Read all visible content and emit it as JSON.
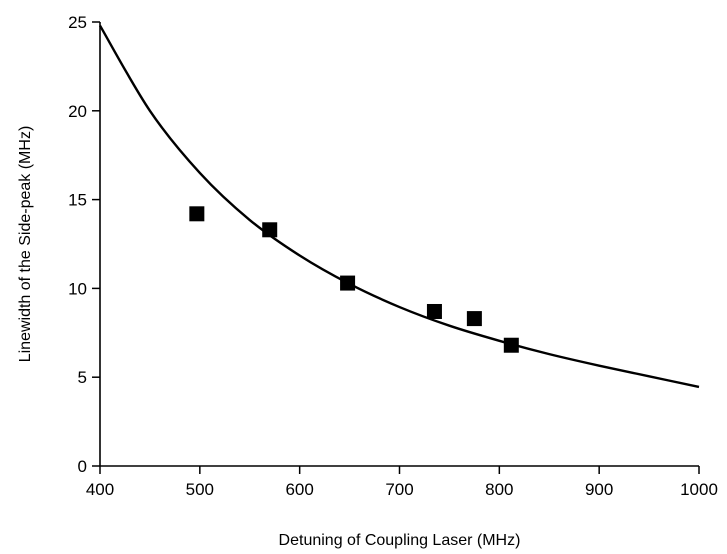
{
  "chart_data": {
    "type": "scatter",
    "title": "",
    "xlabel": "Detuning of Coupling Laser (MHz)",
    "ylabel": "Linewidth of the Side-peak (MHz)",
    "xlim": [
      400,
      1000
    ],
    "ylim": [
      0,
      25
    ],
    "x_ticks": [
      400,
      500,
      600,
      700,
      800,
      900,
      1000
    ],
    "y_ticks": [
      0,
      5,
      10,
      15,
      20,
      25
    ],
    "grid": false,
    "legend": "none",
    "series": [
      {
        "kind": "points",
        "marker": "square",
        "x": [
          497,
          570,
          648,
          735,
          775,
          812
        ],
        "y": [
          14.2,
          13.3,
          10.3,
          8.7,
          8.3,
          6.8
        ]
      },
      {
        "kind": "fit-curve",
        "x": [
          400,
          450,
          500,
          550,
          600,
          650,
          700,
          750,
          800,
          850,
          900,
          950,
          1000
        ],
        "y": [
          24.8,
          20.0,
          16.5,
          13.85,
          11.85,
          10.25,
          8.95,
          7.9,
          7.05,
          6.3,
          5.65,
          5.05,
          4.45
        ]
      }
    ],
    "colors": {
      "axis": "#000000",
      "marker": "#000000",
      "curve": "#000000"
    }
  }
}
